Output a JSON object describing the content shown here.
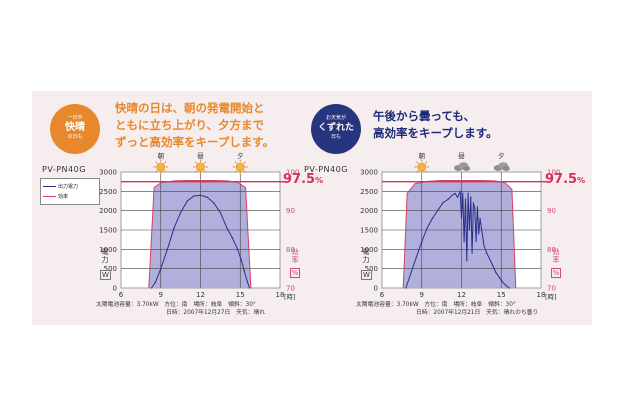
{
  "left": {
    "bubble": {
      "top": "一日中",
      "main": "快晴",
      "bottom": "の日も"
    },
    "headline": [
      "快晴の日は、朝の発電開始と",
      "ともに立ち上がり、夕方まで",
      "ずっと高効率をキープします。"
    ],
    "model": "PV-PN40G",
    "time_labels": [
      "朝",
      "昼",
      "夕"
    ],
    "footer": [
      "太陽電池容量：3.70kW　方位：南　場所：岐阜　傾斜：30°",
      "日時：2007年12月27日　天気：晴れ"
    ]
  },
  "right": {
    "bubble": {
      "top": "お天気が",
      "main": "くずれた",
      "bottom": "日も"
    },
    "headline": [
      "午後から曇っても、",
      "高効率をキープします。"
    ],
    "model": "PV-PN40G",
    "time_labels": [
      "朝",
      "昼",
      "夕"
    ],
    "footer": [
      "太陽電池容量：3.70kW　方位：南　場所：岐阜　傾斜：30°",
      "日時：2007年12月21日　天気：晴れのち曇り"
    ]
  },
  "legend": {
    "power": "出力電力",
    "efficiency": "効率"
  },
  "axis": {
    "y_label": "電力",
    "y_unit": "W",
    "eff_label": "効率",
    "eff_unit": "%",
    "x_unit": "[時]"
  },
  "eff_marker": "97.5",
  "eff_marker_unit": "%",
  "colors": {
    "orange": "#e8882c",
    "navy": "#1d2a7a",
    "pink": "#d8305e",
    "fill": "#a9a6d8",
    "power": "#2a2f8a",
    "eff": "#d44060",
    "bubble_left": "#e8882c",
    "bubble_right": "#27347e"
  },
  "icons": {
    "left": [
      "sun-icon",
      "sun-icon",
      "sun-icon"
    ],
    "right": [
      "sun-icon",
      "cloud-icon",
      "cloud-icon"
    ]
  },
  "chart_data": [
    {
      "type": "area",
      "title": "",
      "xlabel": "[時]",
      "ylabel": "電力 W",
      "y2label": "効率 %",
      "xlim": [
        6,
        18
      ],
      "ylim": [
        0,
        3000
      ],
      "y2lim": [
        70,
        100
      ],
      "xticks": [
        6,
        9,
        12,
        15,
        18
      ],
      "yticks": [
        0,
        500,
        1000,
        1500,
        2000,
        2500,
        3000
      ],
      "y2ticks": [
        70,
        80,
        90,
        100
      ],
      "reference_line": 97.5,
      "series": [
        {
          "name": "出力電力",
          "x": [
            8.3,
            8.6,
            9.0,
            9.5,
            10.0,
            10.5,
            11.0,
            11.5,
            12.0,
            12.5,
            13.0,
            13.5,
            14.0,
            14.4,
            14.8,
            15.1,
            15.3,
            15.5,
            15.7
          ],
          "y": [
            0,
            150,
            500,
            1000,
            1550,
            1950,
            2250,
            2380,
            2400,
            2350,
            2200,
            1950,
            1550,
            1300,
            1000,
            700,
            450,
            200,
            0
          ]
        },
        {
          "name": "効率",
          "x": [
            8.1,
            8.5,
            9.0,
            10.0,
            11.0,
            12.0,
            13.0,
            14.0,
            14.8,
            15.4,
            15.8
          ],
          "y": [
            70,
            96.0,
            97.2,
            97.7,
            97.8,
            97.8,
            97.8,
            97.7,
            97.3,
            96.0,
            70
          ]
        }
      ]
    },
    {
      "type": "area",
      "title": "",
      "xlabel": "[時]",
      "ylabel": "電力 W",
      "y2label": "効率 %",
      "xlim": [
        6,
        18
      ],
      "ylim": [
        0,
        3000
      ],
      "y2lim": [
        70,
        100
      ],
      "xticks": [
        6,
        9,
        12,
        15,
        18
      ],
      "yticks": [
        0,
        500,
        1000,
        1500,
        2000,
        2500,
        3000
      ],
      "y2ticks": [
        70,
        80,
        90,
        100
      ],
      "reference_line": 97.5,
      "series": [
        {
          "name": "出力電力",
          "x": [
            7.8,
            8.2,
            8.6,
            9.0,
            9.4,
            9.8,
            10.2,
            10.6,
            11.0,
            11.3,
            11.5,
            11.7,
            11.9,
            12.0,
            12.1,
            12.2,
            12.3,
            12.4,
            12.5,
            12.6,
            12.7,
            12.8,
            12.9,
            13.0,
            13.1,
            13.2,
            13.3,
            13.4,
            13.5,
            13.7,
            13.9,
            14.2,
            14.6,
            15.0,
            15.3,
            15.6
          ],
          "y": [
            0,
            400,
            800,
            1200,
            1550,
            1800,
            2000,
            2200,
            2300,
            2400,
            2450,
            2350,
            2500,
            1800,
            2450,
            1200,
            2300,
            700,
            2450,
            1500,
            2350,
            900,
            2200,
            2050,
            1200,
            2100,
            1400,
            1800,
            1550,
            1100,
            900,
            700,
            400,
            200,
            80,
            0
          ]
        },
        {
          "name": "効率",
          "x": [
            7.6,
            7.9,
            8.5,
            9.5,
            10.5,
            11.5,
            12.5,
            13.5,
            14.5,
            15.3,
            15.8,
            16.1
          ],
          "y": [
            70,
            94.5,
            97.0,
            97.6,
            97.8,
            97.8,
            97.8,
            97.8,
            97.7,
            97.2,
            95.5,
            70
          ]
        }
      ]
    }
  ]
}
